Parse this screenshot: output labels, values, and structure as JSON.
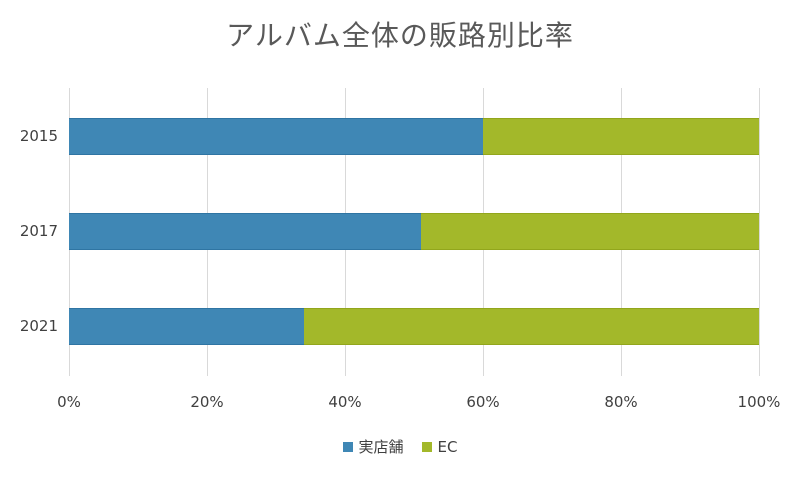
{
  "chart_data": {
    "type": "bar",
    "orientation": "horizontal",
    "stacked": "percent",
    "title": "アルバム全体の販路別比率",
    "xlabel": "",
    "ylabel": "",
    "categories": [
      "2015",
      "2017",
      "2021"
    ],
    "series": [
      {
        "name": "実店舗",
        "color": "#3f87b5",
        "values": [
          60,
          51,
          34
        ]
      },
      {
        "name": "EC",
        "color": "#a3b82a",
        "values": [
          40,
          49,
          66
        ]
      }
    ],
    "xlim": [
      0,
      100
    ],
    "x_ticks": [
      "0%",
      "20%",
      "40%",
      "60%",
      "80%",
      "100%"
    ],
    "grid": "vertical",
    "legend_position": "bottom"
  },
  "title": "アルバム全体の販路別比率",
  "categories": {
    "c0": "2015",
    "c1": "2017",
    "c2": "2021"
  },
  "ticks": {
    "t0": "0%",
    "t1": "20%",
    "t2": "40%",
    "t3": "60%",
    "t4": "80%",
    "t5": "100%"
  },
  "legend": {
    "store": "実店舗",
    "ec": "EC"
  }
}
